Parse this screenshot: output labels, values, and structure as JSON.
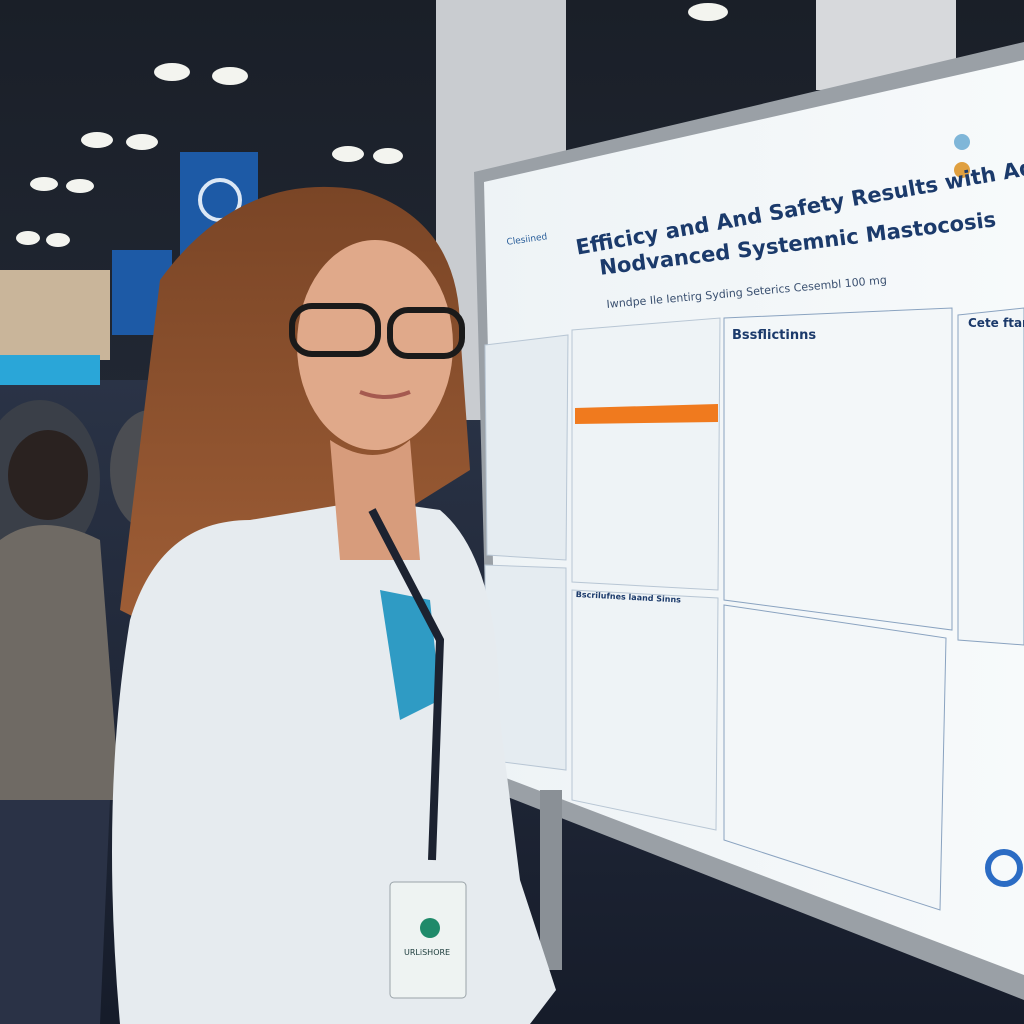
{
  "poster": {
    "title_line1": "Efficicy and And Safety Results with Adult",
    "title_line2": "Nodvanced Systemnic Mastocosis",
    "subtitle": "Iwndpe Ile Ientirg Syding Seterics Cesembl 100 mg",
    "section_results": "Bssflictinns",
    "section_right": "Cete ftanr",
    "section_lower": "Bscrilufnes laand Sinns",
    "logo_text": "Clesiined",
    "accent_color": "#f07a1e",
    "heading_color": "#1b3a6b"
  },
  "badge": {
    "name": "URLiSHORE"
  },
  "banner_color": "#1d5aa6"
}
